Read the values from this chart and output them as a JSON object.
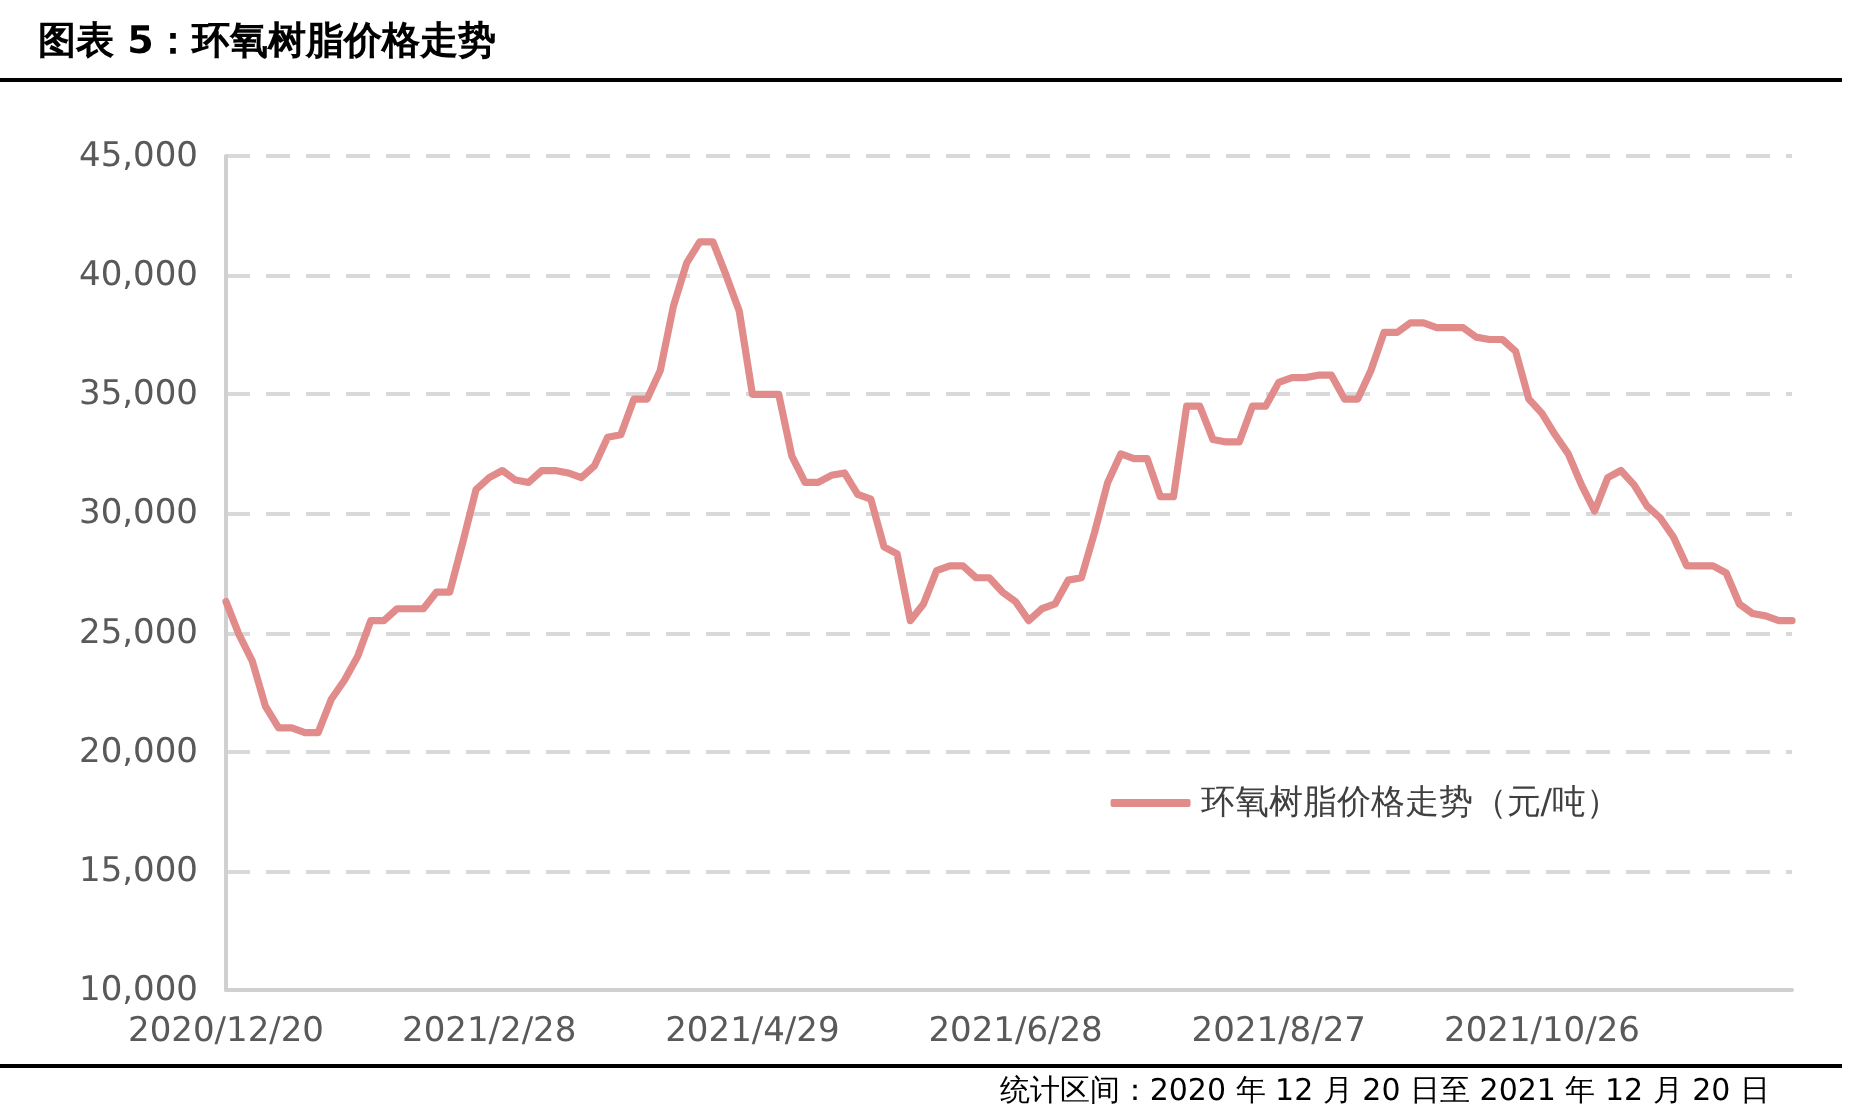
{
  "chart_data": {
    "type": "line",
    "title": "图表 5：环氧树脂价格走势",
    "categories": [
      "2020/12/20",
      null,
      null,
      null,
      null,
      null,
      null,
      null,
      null,
      null,
      null,
      null,
      null,
      null,
      null,
      null,
      null,
      null,
      null,
      null,
      "2021/2/28",
      null,
      null,
      null,
      null,
      null,
      null,
      null,
      null,
      null,
      null,
      null,
      null,
      null,
      null,
      null,
      null,
      null,
      null,
      null,
      "2021/4/29",
      null,
      null,
      null,
      null,
      null,
      null,
      null,
      null,
      null,
      null,
      null,
      null,
      null,
      null,
      null,
      null,
      null,
      null,
      null,
      "2021/6/28",
      null,
      null,
      null,
      null,
      null,
      null,
      null,
      null,
      null,
      null,
      null,
      null,
      null,
      null,
      null,
      null,
      null,
      null,
      null,
      "2021/8/27",
      null,
      null,
      null,
      null,
      null,
      null,
      null,
      null,
      null,
      null,
      null,
      null,
      null,
      null,
      null,
      null,
      null,
      null,
      null,
      "2021/10/26",
      null,
      null,
      null,
      null,
      null,
      null,
      null,
      null,
      null,
      null,
      null,
      null,
      null,
      null,
      null,
      null,
      null,
      null,
      null
    ],
    "series": [
      {
        "name": "环氧树脂价格走势（元/吨）",
        "color": "#e18b8b",
        "values": [
          26300,
          24900,
          23800,
          21900,
          21000,
          21000,
          20800,
          20800,
          22200,
          23000,
          24000,
          25500,
          25500,
          26000,
          26000,
          26000,
          26700,
          26700,
          28800,
          31000,
          31500,
          31800,
          31400,
          31300,
          31800,
          31800,
          31700,
          31500,
          32000,
          33200,
          33300,
          34800,
          34800,
          36000,
          38700,
          40500,
          41400,
          41400,
          40000,
          38500,
          35000,
          35000,
          35000,
          32400,
          31300,
          31300,
          31600,
          31700,
          30800,
          30600,
          28600,
          28300,
          25500,
          26200,
          27600,
          27800,
          27800,
          27300,
          27300,
          26700,
          26300,
          25500,
          26000,
          26200,
          27200,
          27300,
          29200,
          31300,
          32500,
          32300,
          32300,
          30700,
          30700,
          34500,
          34500,
          33100,
          33000,
          33000,
          34500,
          34500,
          35500,
          35700,
          35700,
          35800,
          35800,
          34800,
          34800,
          36000,
          37600,
          37600,
          38000,
          38000,
          37800,
          37800,
          37800,
          37400,
          37300,
          37300,
          36800,
          34800,
          34200,
          33300,
          32500,
          31200,
          30100,
          31500,
          31800,
          31200,
          30300,
          29800,
          29000,
          27800,
          27800,
          27800,
          27500,
          26200,
          25800,
          25700,
          25500,
          25500
        ]
      }
    ],
    "ylim": [
      10000,
      45000
    ],
    "yticks": [
      {
        "value": 10000,
        "label": "10,000"
      },
      {
        "value": 15000,
        "label": "15,000"
      },
      {
        "value": 20000,
        "label": "20,000"
      },
      {
        "value": 25000,
        "label": "25,000"
      },
      {
        "value": 30000,
        "label": "30,000"
      },
      {
        "value": 35000,
        "label": "35,000"
      },
      {
        "value": 40000,
        "label": "40,000"
      },
      {
        "value": 45000,
        "label": "45,000"
      }
    ],
    "grid": "y",
    "legend": "bottom right",
    "marker": "none",
    "line_style": "solid",
    "annotations": [
      "统计区间：2020 年 12 月 20 日至 2021 年 12 月 20 日"
    ]
  }
}
